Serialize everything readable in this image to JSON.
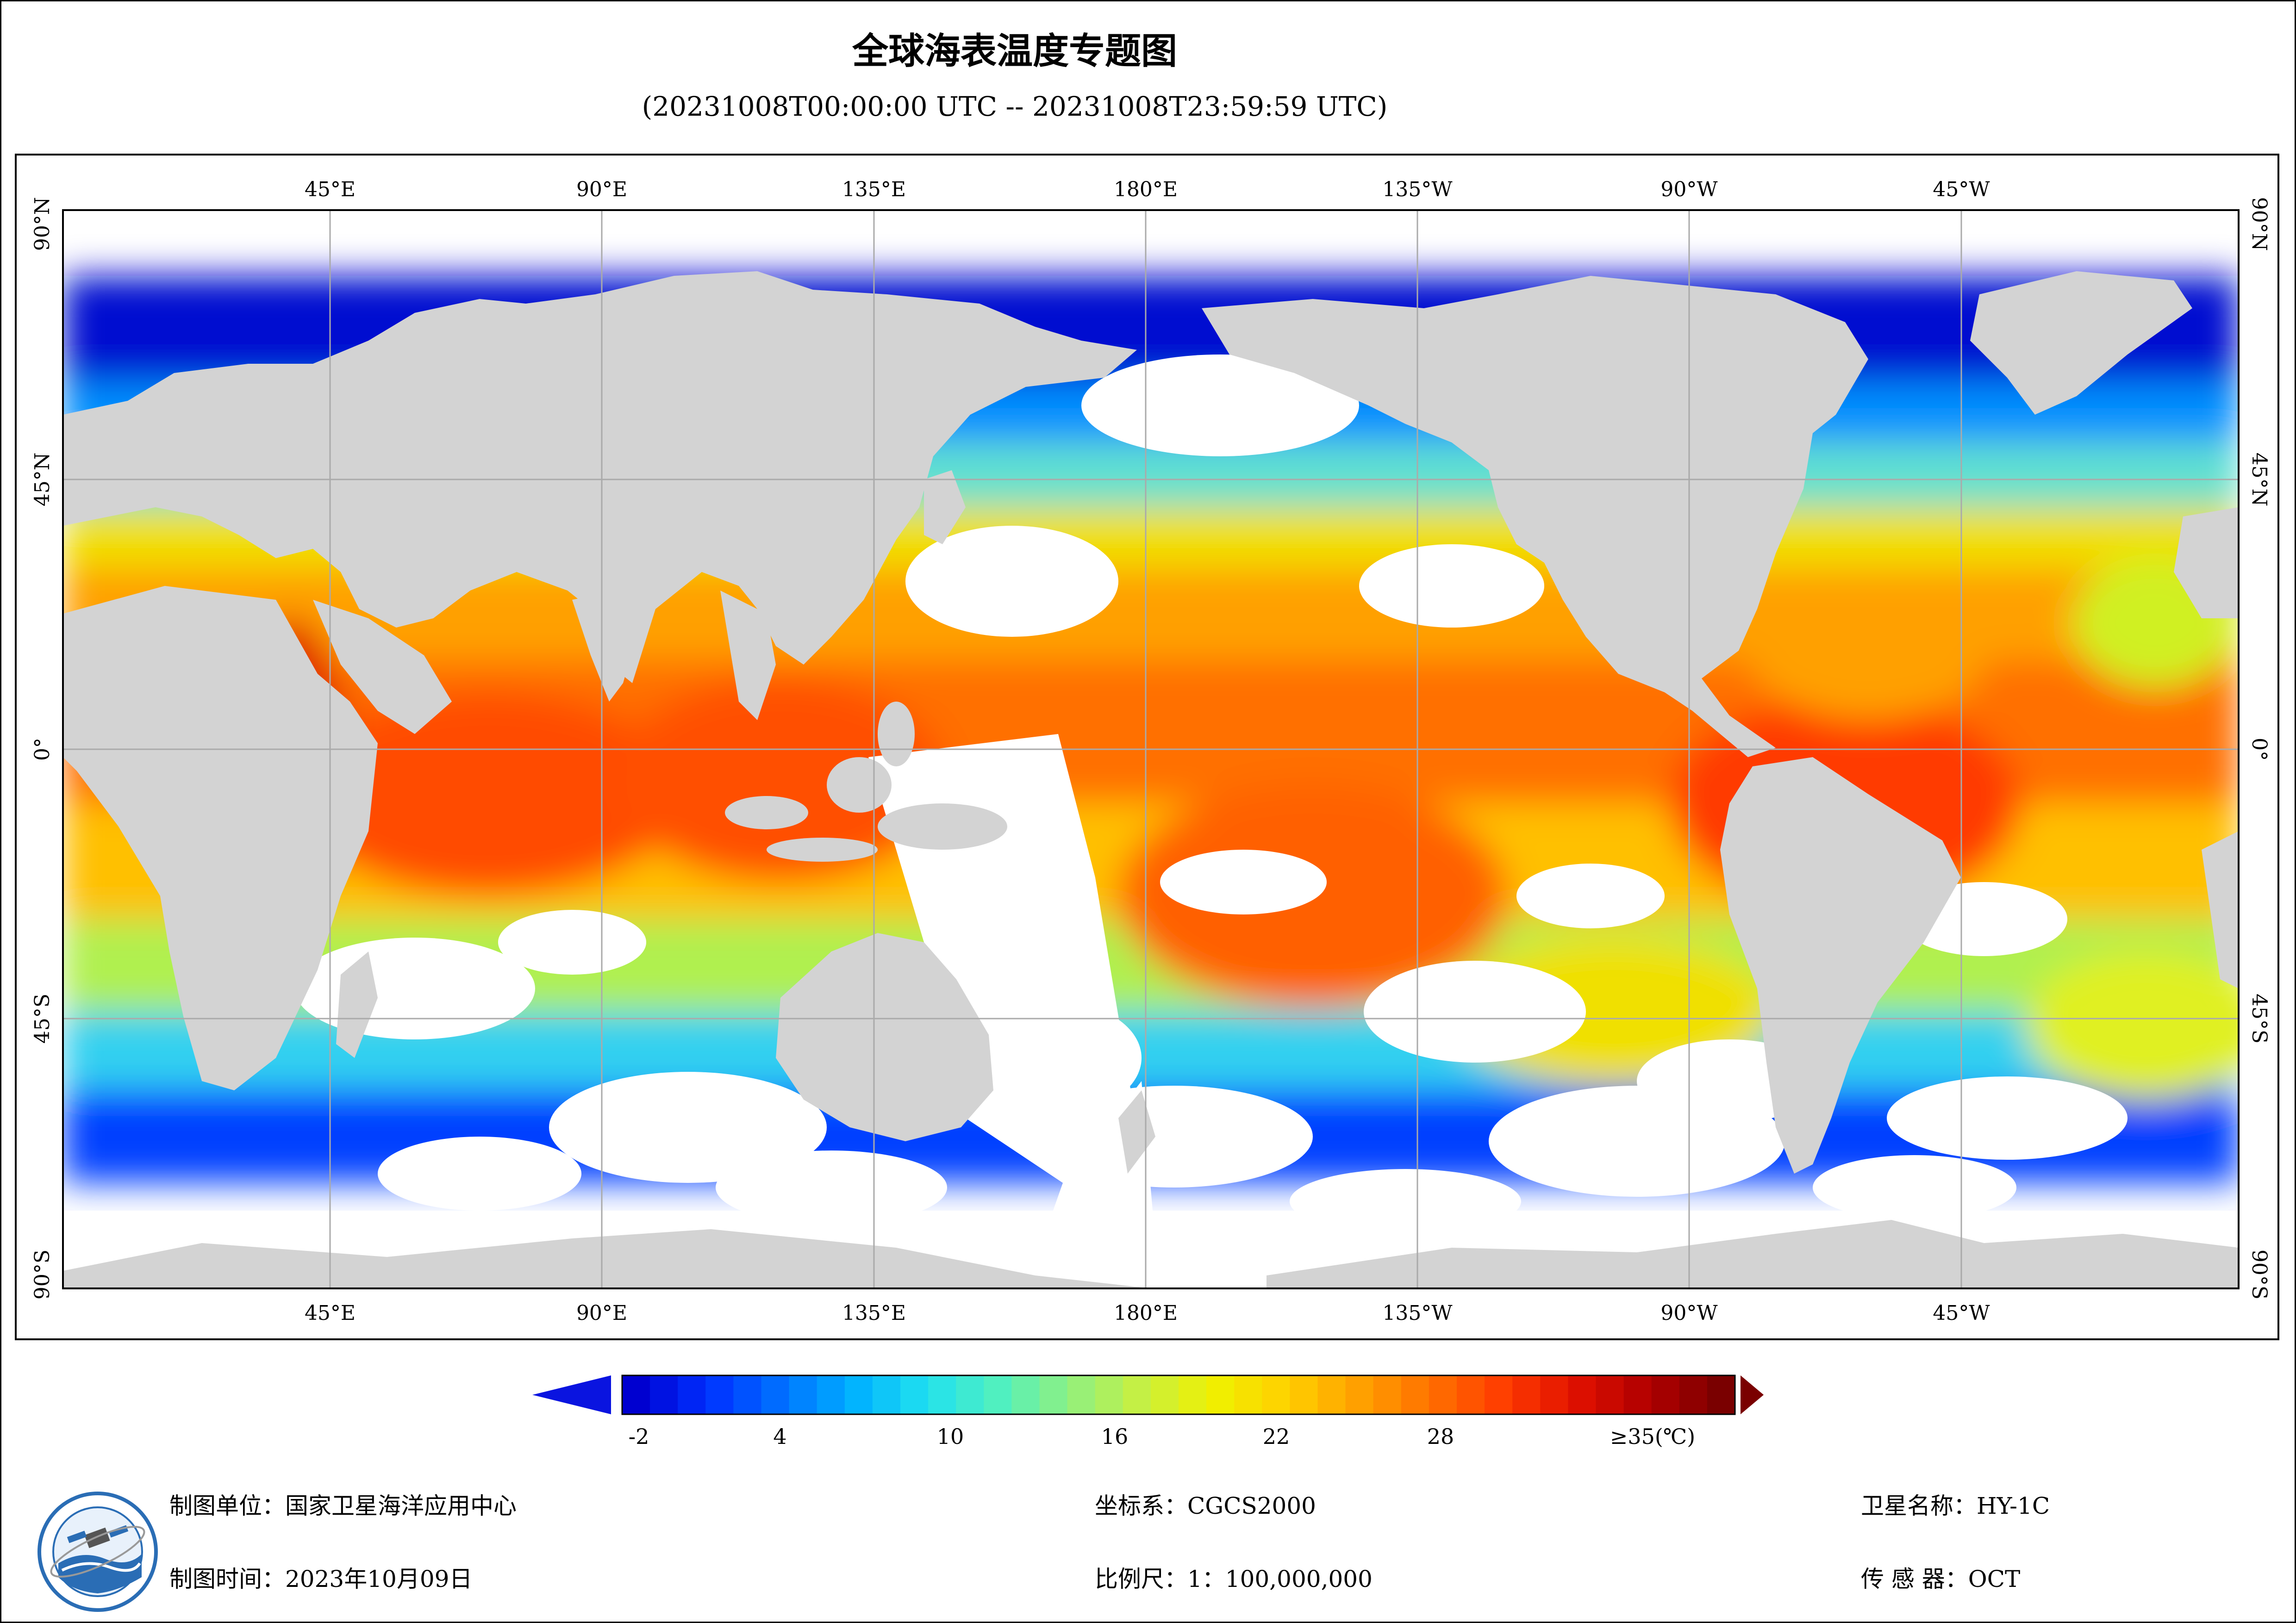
{
  "title": "全球海表温度专题图",
  "subtitle": "(20231008T00:00:00 UTC -- 20231008T23:59:59 UTC)",
  "map": {
    "lon_labels": [
      "45°E",
      "90°E",
      "135°E",
      "180°E",
      "135°W",
      "90°W",
      "45°W"
    ],
    "lat_labels": [
      "90°N",
      "45°N",
      "0°",
      "45°S",
      "90°S"
    ],
    "land_color": "#d3d3d3",
    "no_data_color": "#ffffff",
    "grid_color": "#aaaaaa"
  },
  "legend": {
    "ticks": [
      "-2",
      "4",
      "10",
      "16",
      "22",
      "28"
    ],
    "max_label": "≥35(℃)",
    "under_color": "#0a14e0",
    "over_color": "#7a0000",
    "colormap": [
      "#0000d0",
      "#0030ff",
      "#0070ff",
      "#00b0ff",
      "#20e0f0",
      "#50f0c0",
      "#90f080",
      "#c8f040",
      "#f0f000",
      "#ffd000",
      "#ffa000",
      "#ff7000",
      "#ff3c00",
      "#e01000",
      "#b00000",
      "#7a0000"
    ]
  },
  "footer": {
    "unit": "制图单位：国家卫星海洋应用中心",
    "time": "制图时间：2023年10月09日",
    "crs": "坐标系：CGCS2000",
    "scale": "比例尺：1：100,000,000",
    "satellite": "卫星名称：HY-1C",
    "sensor": "传  感  器：OCT"
  }
}
